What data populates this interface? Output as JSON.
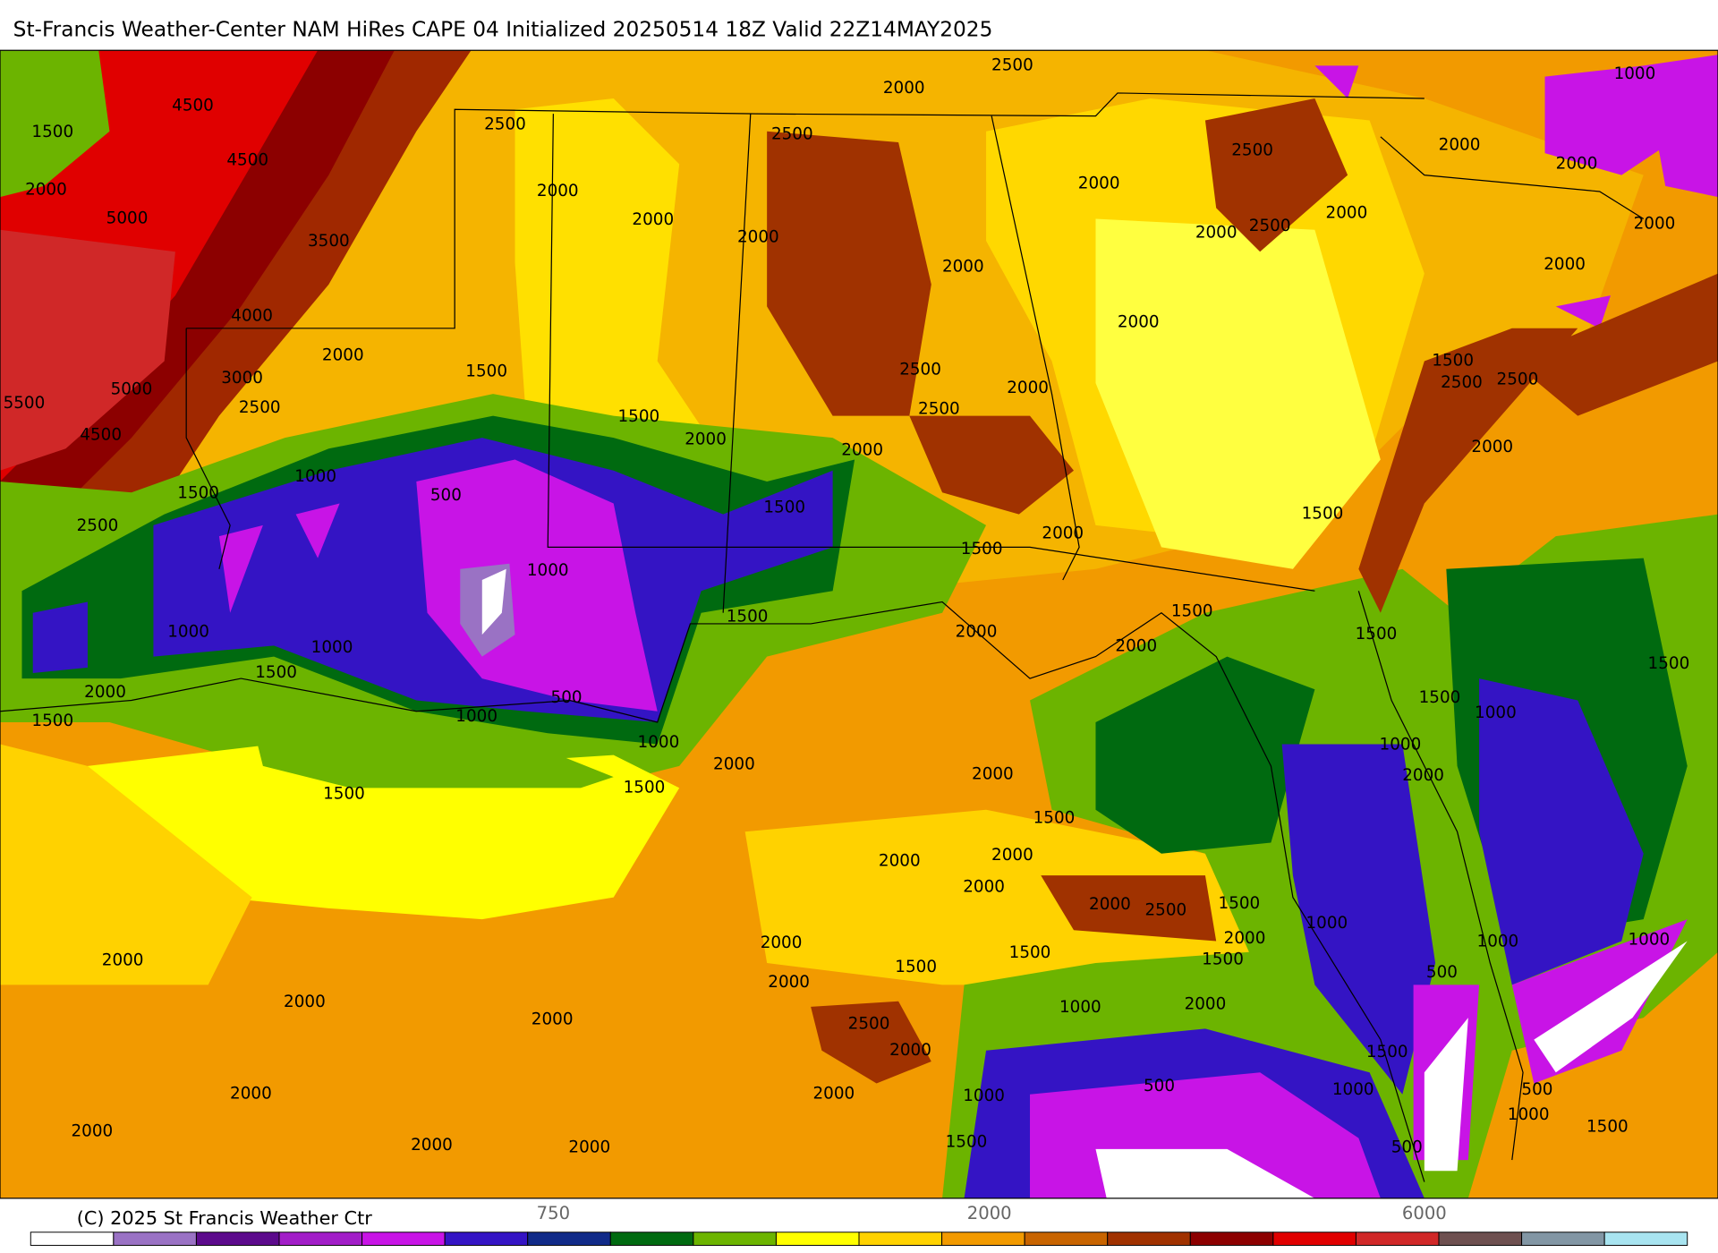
{
  "header": {
    "title": "St-Francis Weather-Center NAM HiRes CAPE  04 Initialized 20250514 18Z Valid 22Z14MAY2025"
  },
  "contour_labels": [
    "4500",
    "1500",
    "4500",
    "2000",
    "5000",
    "3500",
    "4000",
    "2000",
    "3000",
    "5000",
    "5500",
    "2500",
    "4500",
    "1500",
    "1000",
    "500",
    "2500",
    "1000",
    "1000",
    "1000",
    "1500",
    "2000",
    "1500",
    "1000",
    "500",
    "1000",
    "1500",
    "1500",
    "2000",
    "2500",
    "2000",
    "2000",
    "2000",
    "2500",
    "2000",
    "2500",
    "1500",
    "1500",
    "2000",
    "1500",
    "2000",
    "1500",
    "2000",
    "2500",
    "2500",
    "2000",
    "2000",
    "2000",
    "2500",
    "2500",
    "2000",
    "2000",
    "2000",
    "2000",
    "1000",
    "2000",
    "2000",
    "1500",
    "2500",
    "2500",
    "2000",
    "1500",
    "1500",
    "2000",
    "1500",
    "2000",
    "2000",
    "1500",
    "1500",
    "1000",
    "1500",
    "1000",
    "2000",
    "2000",
    "1500",
    "2000",
    "2000",
    "2000",
    "2000",
    "2500",
    "1500",
    "2000",
    "1500",
    "1000",
    "1000",
    "1000",
    "500",
    "2000",
    "1500",
    "1500",
    "2000",
    "1000",
    "2000",
    "2500",
    "2000",
    "1500",
    "2000",
    "1000",
    "500",
    "1000",
    "500",
    "1000",
    "1500",
    "500",
    "1500",
    "2000",
    "2000",
    "2000",
    "2000",
    "2000",
    "2000",
    "2000"
  ],
  "colorbar": {
    "colors": [
      "#ffffff",
      "#9a72c4",
      "#5c0a8c",
      "#a21ec8",
      "#c814e6",
      "#3414c4",
      "#102a88",
      "#006a10",
      "#6cb400",
      "#ffff00",
      "#ffd200",
      "#f29a00",
      "#c86400",
      "#a03200",
      "#8c0000",
      "#e00000",
      "#d02828",
      "#6e5050",
      "#8296a4",
      "#a8e4f0"
    ],
    "labels": [
      "750",
      "2000",
      "6000"
    ]
  },
  "footer": {
    "copyright": "(C) 2025 St Francis Weather Ctr"
  }
}
